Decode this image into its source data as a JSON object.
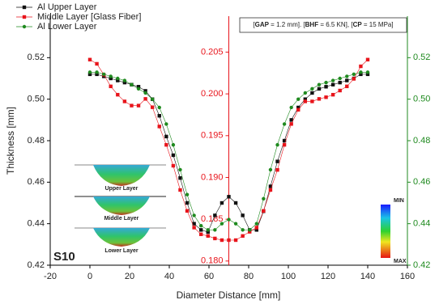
{
  "chart_data": {
    "type": "line",
    "xlabel": "Diameter Distance [mm]",
    "ylabel": "Thickness [mm]",
    "annotation": [
      "[",
      "GAP",
      " = 1.2 mm]. [",
      "BHF",
      " = 6.5 KN], [",
      "CP",
      " = 15 MPa]"
    ],
    "panel_label": "S10",
    "inset_labels": [
      "Upper Layer",
      "Middle Layer",
      "Lower Layer"
    ],
    "colorbar_labels": [
      "MIN",
      "MAX"
    ],
    "xlim": [
      -20,
      160
    ],
    "xticks": [
      -20,
      0,
      20,
      40,
      60,
      80,
      100,
      120,
      140,
      160
    ],
    "ylim": [
      0.42,
      0.54
    ],
    "yticks": [
      0.42,
      0.44,
      0.46,
      0.48,
      {
        "value": 0.5,
        "label": "0.50"
      },
      0.52
    ],
    "y2lim": [
      0.1795,
      0.2093
    ],
    "y2ticks": [
      {
        "value": 0.18,
        "label": "0.180"
      },
      0.185,
      {
        "value": 0.19,
        "label": "0.190"
      },
      0.195,
      {
        "value": 0.2,
        "label": "0.200"
      },
      0.205
    ],
    "y2color": "#e8141b",
    "y3lim": [
      0.42,
      0.54
    ],
    "y3ticks": [
      0.42,
      0.44,
      0.46,
      0.48,
      {
        "value": 0.5,
        "label": "0.50"
      },
      0.52
    ],
    "y3color": "#1f8a1f",
    "x": [
      0,
      3.5,
      7,
      10.5,
      14,
      17.5,
      21,
      24.5,
      28,
      31.5,
      35,
      38.5,
      42,
      45.5,
      49,
      52.5,
      56,
      59.5,
      63,
      66.5,
      70,
      73.5,
      77,
      80.5,
      84,
      87.5,
      91,
      94.5,
      98,
      101.5,
      105,
      108.5,
      112,
      115.5,
      119,
      122.5,
      126,
      129.5,
      133,
      136.5,
      140
    ],
    "series": [
      {
        "name": "Al Upper Layer",
        "color": "#111111",
        "marker": "square",
        "axis": "y",
        "values": [
          0.512,
          0.512,
          0.511,
          0.51,
          0.509,
          0.508,
          0.507,
          0.506,
          0.504,
          0.5,
          0.492,
          0.482,
          0.473,
          0.462,
          0.45,
          0.44,
          0.437,
          0.436,
          0.444,
          0.45,
          0.453,
          0.45,
          0.444,
          0.437,
          0.437,
          0.446,
          0.458,
          0.47,
          0.48,
          0.49,
          0.496,
          0.5,
          0.503,
          0.505,
          0.506,
          0.507,
          0.508,
          0.509,
          0.51,
          0.512,
          0.512
        ]
      },
      {
        "name": "Middle Layer [Glass Fiber]",
        "color": "#e8141b",
        "marker": "square",
        "axis": "y2",
        "values": [
          0.2041,
          0.2036,
          0.2023,
          0.2009,
          0.1999,
          0.1991,
          0.1986,
          0.1986,
          0.1994,
          0.1984,
          0.1961,
          0.1939,
          0.1914,
          0.1885,
          0.186,
          0.184,
          0.1832,
          0.183,
          0.1827,
          0.1825,
          0.1825,
          0.1825,
          0.183,
          0.1835,
          0.184,
          0.186,
          0.1885,
          0.1909,
          0.1939,
          0.1964,
          0.1981,
          0.1991,
          0.1991,
          0.1994,
          0.1996,
          0.1999,
          0.2004,
          0.2009,
          0.2018,
          0.2033,
          0.2041
        ]
      },
      {
        "name": "Al Lower Layer",
        "color": "#1f8a1f",
        "marker": "circle",
        "axis": "y3",
        "values": [
          0.513,
          0.513,
          0.512,
          0.511,
          0.51,
          0.509,
          0.507,
          0.505,
          0.503,
          0.5,
          0.496,
          0.488,
          0.478,
          0.466,
          0.454,
          0.444,
          0.439,
          0.437,
          0.437,
          0.44,
          0.442,
          0.44,
          0.437,
          0.437,
          0.44,
          0.452,
          0.466,
          0.478,
          0.488,
          0.496,
          0.5,
          0.503,
          0.505,
          0.507,
          0.508,
          0.509,
          0.51,
          0.511,
          0.512,
          0.513,
          0.513
        ]
      }
    ]
  }
}
